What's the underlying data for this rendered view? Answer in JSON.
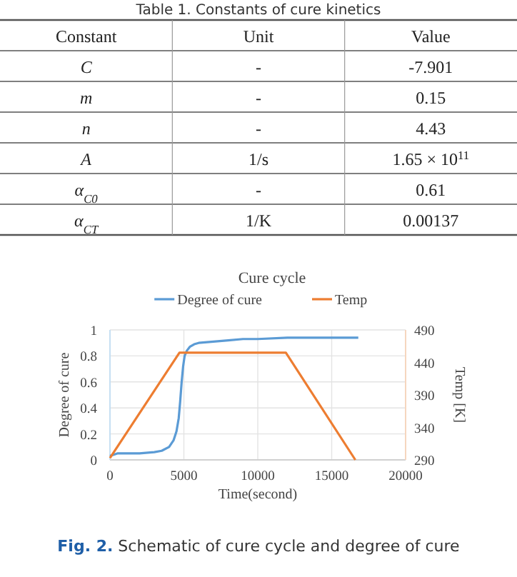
{
  "chart_data": [
    {
      "type": "other",
      "title": "Table 1. Constants of cure kinetics",
      "annotations": [
        "Constant",
        "Unit",
        "Value",
        "C",
        "-",
        "-7.901",
        "m",
        "-",
        "0.15",
        "n",
        "-",
        "4.43",
        "A",
        "1/s",
        "1.65 × 10$^{11}$",
        "α$_{C0}$",
        "-",
        "0.61",
        "α$_{CT}$",
        "1/K",
        "0.00137"
      ]
    },
    {
      "type": "line",
      "title": "Cure cycle",
      "xlabel": "Time(second)",
      "ylabel": "Degree of cure",
      "y2label": "Temp [K]",
      "xlim": [
        0,
        20000
      ],
      "xticks": [
        0,
        5000,
        10000,
        15000,
        20000
      ],
      "ylim": [
        0,
        1
      ],
      "yticks": [
        0,
        0.2,
        0.4,
        0.6,
        0.8,
        1
      ],
      "y2lim": [
        290,
        490
      ],
      "y2ticks": [
        290,
        340,
        390,
        440,
        490
      ],
      "grid": true,
      "legend": "top",
      "marker": "none",
      "line_style": "solid",
      "annotations": [
        "Fig. 2. Schematic of cure cycle and degree of cure"
      ],
      "series": [
        {
          "name": "Degree of cure",
          "color": "#5b9bd5",
          "x": [
            0,
            500,
            1000,
            2000,
            3000,
            3500,
            4000,
            4300,
            4500,
            4650,
            4750,
            4850,
            4950,
            5050,
            5200,
            5400,
            5700,
            6000,
            7000,
            8000,
            9000,
            10000,
            12000,
            14000,
            16800
          ],
          "values": [
            0.03,
            0.05,
            0.05,
            0.05,
            0.06,
            0.07,
            0.1,
            0.15,
            0.22,
            0.32,
            0.45,
            0.6,
            0.72,
            0.8,
            0.84,
            0.87,
            0.89,
            0.9,
            0.91,
            0.92,
            0.93,
            0.93,
            0.94,
            0.94,
            0.94
          ]
        },
        {
          "name": "Temp",
          "color": "#ed7d31",
          "axis": "y2",
          "x": [
            0,
            4700,
            11900,
            16600
          ],
          "values": [
            293,
            455,
            455,
            290
          ]
        }
      ]
    }
  ]
}
